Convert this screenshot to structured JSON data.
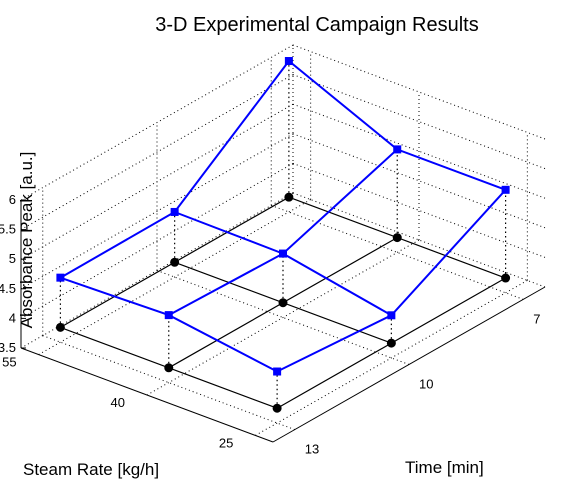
{
  "chart_data": {
    "type": "3d-line",
    "title": "3-D Experimental Campaign Results",
    "xlabel": "Time [min]",
    "ylabel": "Steam Rate [kg/h]",
    "zlabel": "Absorbance Peak [a.u.]",
    "x_ticks": [
      "7",
      "10",
      "13"
    ],
    "y_ticks": [
      "25",
      "40",
      "55"
    ],
    "z_ticks": [
      "3.5",
      "4",
      "4.5",
      "5",
      "5.5",
      "6"
    ],
    "x_values": [
      7,
      10,
      13
    ],
    "y_values": [
      25,
      40,
      55
    ],
    "zlim": [
      3.5,
      6
    ],
    "grid": true,
    "colors": {
      "series": "#0000ff",
      "floor": "#000000"
    },
    "points": [
      {
        "time": 13,
        "steam": 55,
        "absorbance": 4.59
      },
      {
        "time": 13,
        "steam": 40,
        "absorbance": 4.64
      },
      {
        "time": 13,
        "steam": 25,
        "absorbance": 4.37
      },
      {
        "time": 10,
        "steam": 55,
        "absorbance": 4.6
      },
      {
        "time": 10,
        "steam": 40,
        "absorbance": 4.58
      },
      {
        "time": 10,
        "steam": 25,
        "absorbance": 4.22
      },
      {
        "time": 7,
        "steam": 55,
        "absorbance": 6.05
      },
      {
        "time": 7,
        "steam": 40,
        "absorbance": 5.24
      },
      {
        "time": 7,
        "steam": 25,
        "absorbance": 5.24
      }
    ]
  }
}
